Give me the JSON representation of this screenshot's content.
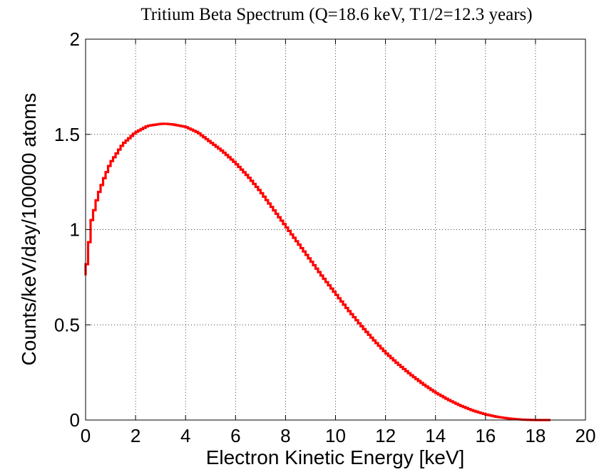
{
  "chart_data": {
    "type": "line",
    "title": "Tritium Beta Spectrum (Q=18.6 keV, T1/2=12.3 years)",
    "xlabel": "Electron Kinetic Energy [keV]",
    "ylabel": "Counts/keV/day/100000 atoms",
    "xlim": [
      0,
      20
    ],
    "ylim": [
      0,
      2
    ],
    "x_ticks": [
      "0",
      "2",
      "4",
      "6",
      "8",
      "10",
      "12",
      "14",
      "16",
      "18",
      "20"
    ],
    "y_ticks": [
      "0",
      "0.5",
      "1",
      "1.5",
      "2"
    ],
    "grid": true,
    "grid_style": "dotted",
    "line_style": "step",
    "series_color": "#ff0000",
    "series": [
      {
        "x": [
          0,
          0.25,
          0.5,
          0.75,
          1,
          1.5,
          2,
          2.5,
          3,
          3.2,
          3.5,
          4,
          4.5,
          5,
          5.5,
          6,
          6.5,
          7,
          7.5,
          8,
          8.5,
          9,
          9.5,
          10,
          10.5,
          11,
          11.5,
          12,
          12.5,
          13,
          13.5,
          14,
          14.5,
          15,
          15.5,
          16,
          16.5,
          17,
          17.5,
          18,
          18.3,
          18.6
        ],
        "y": [
          0.76,
          1.05,
          1.18,
          1.27,
          1.35,
          1.45,
          1.51,
          1.545,
          1.555,
          1.556,
          1.552,
          1.54,
          1.51,
          1.46,
          1.41,
          1.35,
          1.28,
          1.2,
          1.11,
          1.02,
          0.93,
          0.84,
          0.75,
          0.665,
          0.58,
          0.5,
          0.425,
          0.355,
          0.295,
          0.24,
          0.19,
          0.145,
          0.108,
          0.076,
          0.05,
          0.03,
          0.016,
          0.007,
          0.002,
          0.0,
          0.0,
          0.0
        ]
      }
    ]
  }
}
